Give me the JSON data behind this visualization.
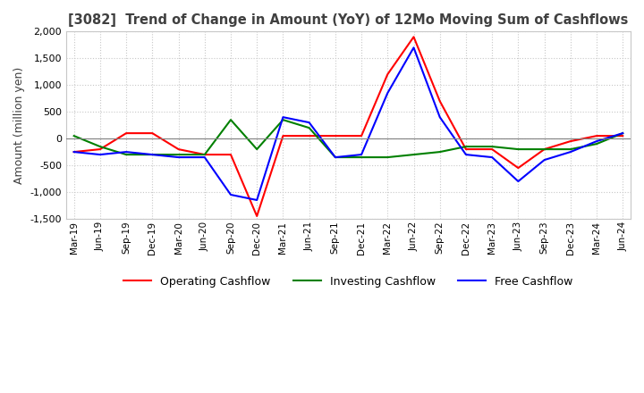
{
  "title": "[3082]  Trend of Change in Amount (YoY) of 12Mo Moving Sum of Cashflows",
  "ylabel": "Amount (million yen)",
  "x_labels": [
    "Mar-19",
    "Jun-19",
    "Sep-19",
    "Dec-19",
    "Mar-20",
    "Jun-20",
    "Sep-20",
    "Dec-20",
    "Mar-21",
    "Jun-21",
    "Sep-21",
    "Dec-21",
    "Mar-22",
    "Jun-22",
    "Sep-22",
    "Dec-22",
    "Mar-23",
    "Jun-23",
    "Sep-23",
    "Dec-23",
    "Mar-24",
    "Jun-24"
  ],
  "operating": [
    -250,
    -200,
    100,
    100,
    -200,
    -300,
    -300,
    -1450,
    50,
    50,
    50,
    50,
    1200,
    1900,
    700,
    -200,
    -200,
    -550,
    -200,
    -50,
    50,
    50
  ],
  "investing": [
    50,
    -150,
    -300,
    -300,
    -300,
    -300,
    350,
    -200,
    350,
    200,
    -350,
    -350,
    -350,
    -300,
    -250,
    -150,
    -150,
    -200,
    -200,
    -200,
    -100,
    100
  ],
  "free": [
    -250,
    -300,
    -250,
    -300,
    -350,
    -350,
    -1050,
    -1150,
    400,
    300,
    -350,
    -300,
    850,
    1700,
    400,
    -300,
    -350,
    -800,
    -400,
    -250,
    -50,
    100
  ],
  "ylim": [
    -1500,
    2000
  ],
  "yticks": [
    -1500,
    -1000,
    -500,
    0,
    500,
    1000,
    1500,
    2000
  ],
  "operating_color": "#ff0000",
  "investing_color": "#008000",
  "free_color": "#0000ff",
  "bg_color": "#ffffff",
  "grid_color": "#c8c8c8",
  "title_color": "#404040"
}
